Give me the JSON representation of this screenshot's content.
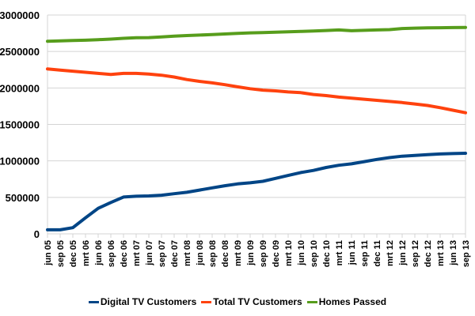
{
  "chart_data": {
    "type": "line",
    "title": "",
    "xlabel": "",
    "ylabel": "",
    "ylim": [
      0,
      3000000
    ],
    "yticks": [
      0,
      500000,
      1000000,
      1500000,
      2000000,
      2500000,
      3000000
    ],
    "ytick_labels": [
      "0",
      "500000",
      "1000000",
      "1500000",
      "2000000",
      "2500000",
      "3000000"
    ],
    "grid": true,
    "legend_position": "bottom",
    "categories": [
      "jun 05",
      "sep 05",
      "dec 05",
      "mrt 06",
      "jun 06",
      "sep 06",
      "dec 06",
      "mrt 07",
      "jun 07",
      "sep 07",
      "dec 07",
      "mrt 08",
      "jun 08",
      "sep 08",
      "dec 08",
      "mrt 09",
      "jun 09",
      "sep 09",
      "dec 09",
      "mrt 10",
      "jun 10",
      "sep 10",
      "dec 10",
      "mrt 11",
      "jun 11",
      "sep 11",
      "dec 11",
      "mrt 12",
      "jun 12",
      "sep 12",
      "dec 12",
      "mrt 13",
      "jun 13",
      "sep 13"
    ],
    "series": [
      {
        "name": "Digital TV Customers",
        "color": "#004586",
        "values": [
          55000,
          55000,
          85000,
          220000,
          350000,
          430000,
          505000,
          515000,
          520000,
          530000,
          550000,
          570000,
          600000,
          630000,
          660000,
          685000,
          700000,
          720000,
          760000,
          800000,
          840000,
          870000,
          910000,
          940000,
          960000,
          990000,
          1020000,
          1045000,
          1065000,
          1075000,
          1085000,
          1095000,
          1100000,
          1105000
        ]
      },
      {
        "name": "Total TV Customers",
        "color": "#ff420e",
        "values": [
          2260000,
          2245000,
          2230000,
          2215000,
          2200000,
          2185000,
          2200000,
          2200000,
          2190000,
          2175000,
          2150000,
          2115000,
          2090000,
          2070000,
          2045000,
          2015000,
          1990000,
          1970000,
          1960000,
          1945000,
          1935000,
          1910000,
          1895000,
          1875000,
          1860000,
          1845000,
          1830000,
          1815000,
          1800000,
          1780000,
          1760000,
          1730000,
          1695000,
          1660000
        ]
      },
      {
        "name": "Homes Passed",
        "color": "#579d1c",
        "values": [
          2640000,
          2645000,
          2650000,
          2655000,
          2662000,
          2670000,
          2680000,
          2688000,
          2690000,
          2700000,
          2710000,
          2718000,
          2725000,
          2733000,
          2740000,
          2748000,
          2755000,
          2760000,
          2765000,
          2770000,
          2775000,
          2780000,
          2788000,
          2795000,
          2785000,
          2790000,
          2795000,
          2800000,
          2815000,
          2820000,
          2823000,
          2826000,
          2828000,
          2830000
        ]
      }
    ]
  }
}
